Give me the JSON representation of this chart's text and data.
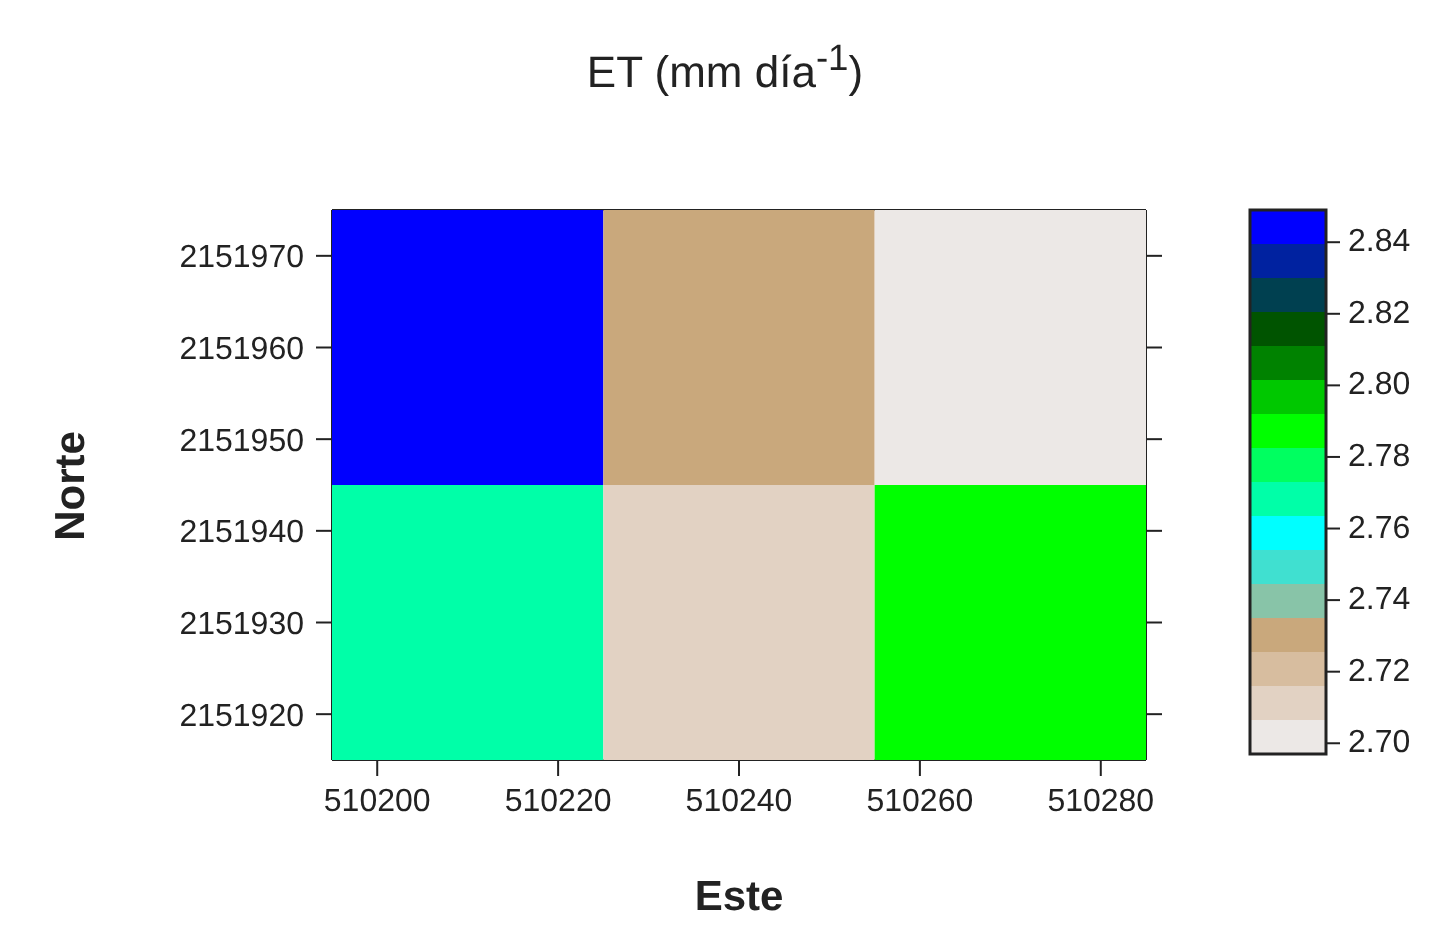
{
  "chart_data": {
    "type": "heatmap",
    "title": "ET (mm día$^{-1}$)",
    "xlabel": "Este",
    "ylabel": "Norte",
    "x": [
      510210,
      510240,
      510270
    ],
    "y": [
      2151960,
      2151930
    ],
    "cells": [
      [
        2.84,
        2.73,
        2.7
      ],
      [
        2.77,
        2.71,
        2.79
      ]
    ],
    "xlim": [
      510195,
      510285
    ],
    "xticks": [
      510200,
      510220,
      510240,
      510260,
      510280
    ],
    "ylim": [
      2151915,
      2151975
    ],
    "yticks": [
      2151920,
      2151930,
      2151940,
      2151950,
      2151960,
      2151970
    ],
    "clim": [
      2.697,
      2.849
    ],
    "cticks": [
      {
        "value": 2.7,
        "label": "2.70"
      },
      2.72,
      2.74,
      2.76,
      2.78,
      {
        "value": 2.8,
        "label": "2.80"
      },
      2.82,
      2.84
    ],
    "colors": [
      "#ece8e6",
      "#e2d2c3",
      "#d7bd9f",
      "#c9a87c",
      "#88c4a8",
      "#40e0d0",
      "#00ffff",
      "#00ffa8",
      "#00ff60",
      "#00ff00",
      "#00c800",
      "#008200",
      "#005400",
      "#004050",
      "#0022a0",
      "#0000ff"
    ]
  }
}
